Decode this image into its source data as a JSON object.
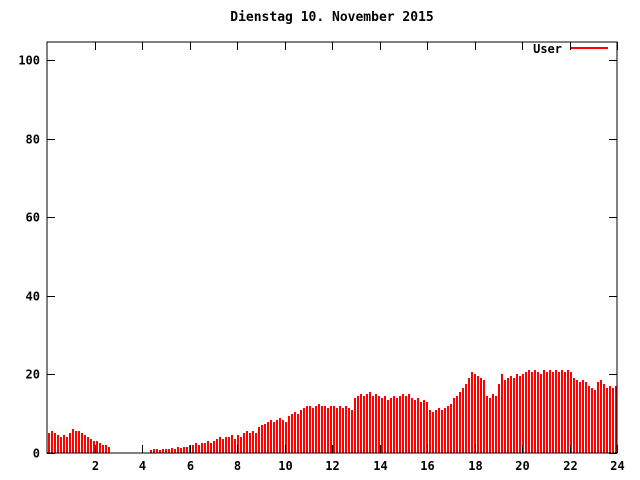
{
  "window": {
    "background": "#ffffff",
    "foreground": "#000000"
  },
  "legend": {
    "label": "User"
  },
  "chart_data": {
    "type": "bar",
    "title": "Dienstag 10. November 2015",
    "xlabel": "",
    "ylabel": "",
    "xlim": [
      0,
      24
    ],
    "ylim": [
      0,
      104.6
    ],
    "xticks": [
      2,
      4,
      6,
      8,
      10,
      12,
      14,
      16,
      18,
      20,
      22,
      24
    ],
    "yticks": [
      0,
      20,
      40,
      60,
      80,
      100
    ],
    "grid": false,
    "legend_position": "top-right-inside",
    "series": [
      {
        "name": "User",
        "color": "#ff0000",
        "style": "impulses",
        "x_start_hour": 0.0,
        "x_step_hours": 0.1263,
        "values": [
          5,
          5.5,
          5,
          4.5,
          4,
          4.5,
          4,
          5,
          6,
          5.5,
          5.5,
          5,
          4.5,
          4,
          3.5,
          3,
          3,
          2.5,
          2,
          2,
          1.5,
          0,
          0,
          0,
          0,
          0,
          0,
          0,
          0,
          0,
          0,
          0,
          0,
          0,
          0.7,
          1,
          1,
          0.8,
          1,
          1,
          1,
          1.2,
          1,
          1.5,
          1.2,
          1.5,
          1.5,
          2,
          2,
          2.5,
          2,
          2.5,
          2.5,
          3,
          2.5,
          3,
          3.5,
          4,
          3.5,
          4,
          4,
          4.5,
          3.5,
          4.5,
          4,
          5,
          5.5,
          5,
          5.5,
          5,
          6.5,
          7,
          7.5,
          8,
          8.5,
          8,
          8.5,
          9,
          8.5,
          8,
          9.5,
          10,
          10.5,
          10,
          11,
          11.5,
          12,
          12,
          11.5,
          12,
          12.5,
          12,
          12,
          11.5,
          12,
          12,
          11.5,
          12,
          11.5,
          12,
          11.5,
          11,
          14,
          14.5,
          15,
          14.5,
          15,
          15.5,
          14.5,
          15,
          14.5,
          14,
          14.5,
          13.5,
          14,
          14.5,
          14,
          14.5,
          15,
          14.5,
          15,
          14,
          13.5,
          14,
          13,
          13.5,
          13,
          11,
          10.5,
          11,
          11.5,
          11,
          11.5,
          12,
          12.5,
          14,
          14.5,
          15.5,
          16.5,
          17.5,
          19,
          20.5,
          20,
          19.5,
          19,
          18.5,
          14.5,
          14,
          15,
          14.5,
          17.5,
          20,
          18.5,
          19,
          19.5,
          19,
          20,
          19.5,
          20,
          20.5,
          21,
          20.5,
          21,
          20.5,
          20,
          21,
          20.5,
          21,
          20.5,
          21,
          20.5,
          21,
          20.5,
          21,
          20.5,
          19,
          18.5,
          18,
          18.5,
          18,
          17,
          16.5,
          16,
          18,
          18.5,
          17.5,
          16.5,
          17,
          16.5,
          17
        ]
      }
    ]
  }
}
